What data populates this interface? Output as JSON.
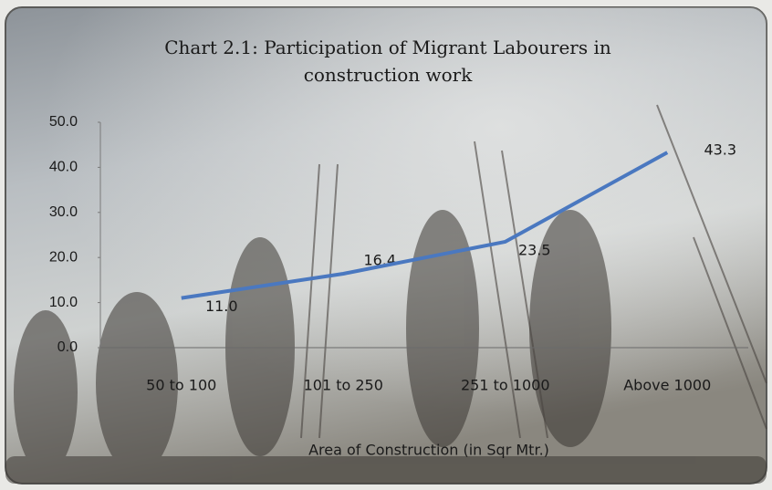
{
  "chart_data": {
    "type": "line",
    "title": "Chart 2.1: Participation of Migrant Labourers in construction work",
    "x_label": "Area of Construction (in Sqr Mtr.)",
    "categories": [
      "50 to 100",
      "101 to 250",
      "251 to 1000",
      "Above 1000"
    ],
    "values": [
      11.0,
      16.4,
      23.5,
      43.3
    ],
    "value_labels": [
      "11.0",
      "16.4",
      "23.5",
      "43.3"
    ],
    "color": "#4a78c0",
    "ylim": [
      0,
      50
    ],
    "yticks": [
      {
        "value": 0,
        "label": "0.0"
      },
      {
        "value": 10,
        "label": "10.0"
      },
      {
        "value": 20,
        "label": "20.0"
      },
      {
        "value": 30,
        "label": "30.0"
      },
      {
        "value": 40,
        "label": "40.0"
      },
      {
        "value": 50,
        "label": "50.0"
      }
    ]
  }
}
